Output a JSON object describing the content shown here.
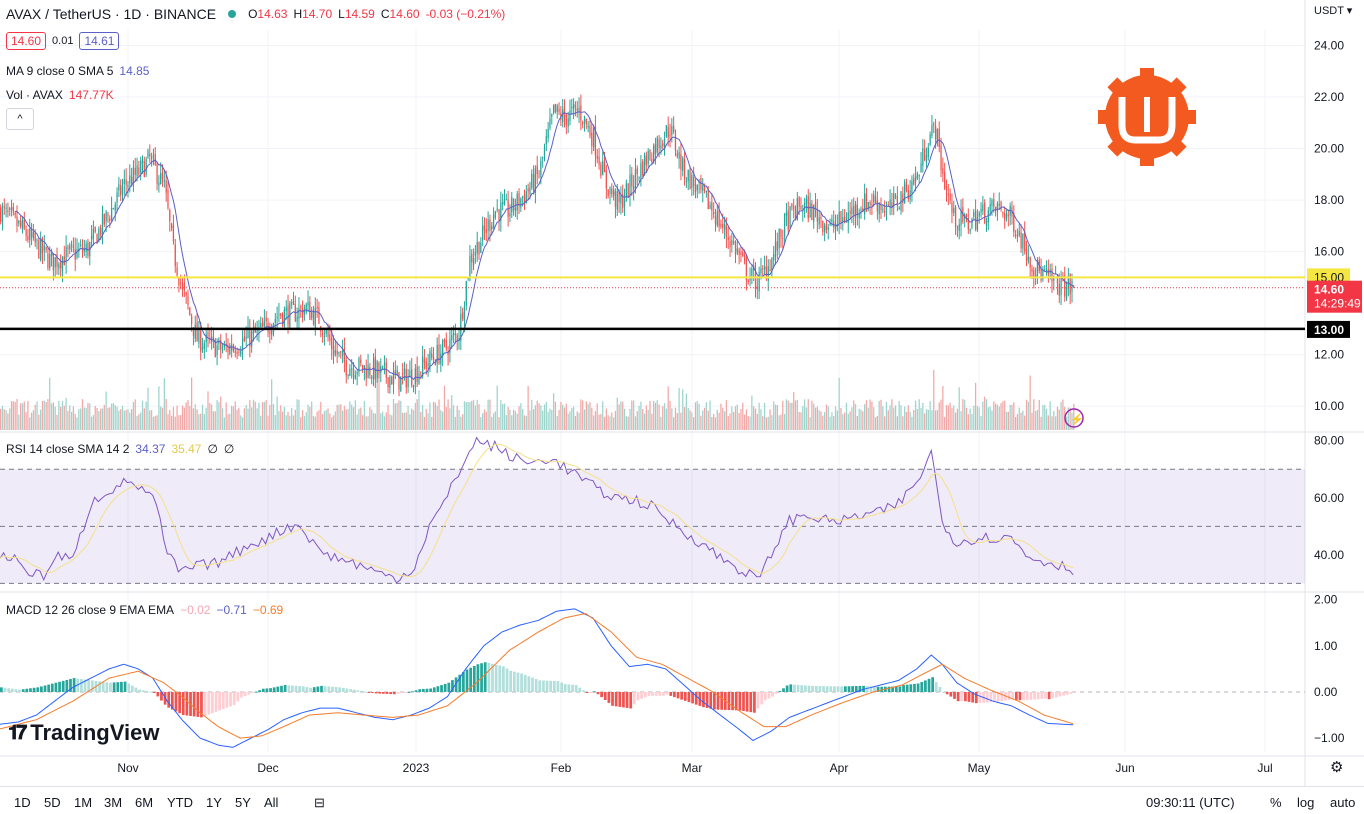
{
  "header": {
    "symbol": "AVAX / TetherUS · 1D · BINANCE",
    "open_label": "O",
    "open": "14.63",
    "high_label": "H",
    "high": "14.70",
    "low_label": "L",
    "low": "14.59",
    "close_label": "C",
    "close": "14.60",
    "change": "-0.03 (−0.21%)",
    "bid": "14.60",
    "spread": "0.01",
    "ask": "14.61",
    "currency": "USDT"
  },
  "indicators": {
    "ma": {
      "label": "MA 9 close 0 SMA 5",
      "value": "14.85"
    },
    "vol": {
      "label": "Vol · AVAX",
      "value": "147.77K"
    },
    "rsi": {
      "label": "RSI 14 close SMA 14 2",
      "value": "34.37",
      "sma": "35.47",
      "v3": "∅",
      "v4": "∅"
    },
    "macd": {
      "label": "MACD 12 26 close 9 EMA EMA",
      "hist": "−0.02",
      "macd": "−0.71",
      "signal": "−0.69"
    }
  },
  "price_axis": {
    "ticks": [
      "24.00",
      "22.00",
      "20.00",
      "18.00",
      "16.00",
      "12.00",
      "10.00"
    ],
    "yellow_level": "15.00",
    "black_level": "13.00",
    "last_price": "14.60",
    "countdown": "14:29:49"
  },
  "rsi_axis": {
    "ticks": [
      "80.00",
      "60.00",
      "40.00"
    ]
  },
  "macd_axis": {
    "ticks": [
      "2.00",
      "1.00",
      "0.00",
      "−1.00"
    ]
  },
  "time_axis": {
    "labels": [
      "Nov",
      "Dec",
      "2023",
      "Feb",
      "Mar",
      "Apr",
      "May",
      "Jun",
      "Jul"
    ]
  },
  "footer": {
    "timeframes": [
      "1D",
      "5D",
      "1M",
      "3M",
      "6M",
      "YTD",
      "1Y",
      "5Y",
      "All"
    ],
    "clock": "09:30:11 (UTC)",
    "percent": "%",
    "log": "log",
    "auto": "auto"
  },
  "branding": {
    "name": "TradingView"
  },
  "colors": {
    "up": "#26a69a",
    "down": "#ef5350",
    "ma": "#5b5fc7",
    "yellow_line": "#f5e642",
    "black_line": "#000000",
    "rsi": "#7e57c2",
    "rsi_sma": "#f5e08a",
    "macd": "#2962ff",
    "signal": "#f57c2c"
  },
  "chart_data": {
    "type": "candlestick",
    "title": "AVAX / TetherUS · 1D · BINANCE",
    "ylim": [
      9.0,
      24.6
    ],
    "horizontal_levels": [
      15.0,
      13.0
    ],
    "anchors": [
      [
        0,
        17.6
      ],
      [
        10,
        17.0
      ],
      [
        20,
        16.2
      ],
      [
        28,
        15.6
      ],
      [
        38,
        15.9
      ],
      [
        48,
        16.1
      ],
      [
        60,
        17.5
      ],
      [
        68,
        18.6
      ],
      [
        75,
        19.0
      ],
      [
        82,
        19.6
      ],
      [
        90,
        18.5
      ],
      [
        95,
        16.0
      ],
      [
        100,
        14.5
      ],
      [
        108,
        12.6
      ],
      [
        115,
        12.4
      ],
      [
        122,
        12.2
      ],
      [
        130,
        12.4
      ],
      [
        138,
        12.7
      ],
      [
        145,
        13.0
      ],
      [
        153,
        13.6
      ],
      [
        160,
        13.6
      ],
      [
        168,
        13.8
      ],
      [
        175,
        13.4
      ],
      [
        183,
        12.2
      ],
      [
        190,
        11.6
      ],
      [
        198,
        11.5
      ],
      [
        205,
        11.4
      ],
      [
        212,
        11.2
      ],
      [
        220,
        11.0
      ],
      [
        228,
        11.3
      ],
      [
        236,
        11.8
      ],
      [
        244,
        12.2
      ],
      [
        252,
        12.9
      ],
      [
        258,
        15.7
      ],
      [
        265,
        16.6
      ],
      [
        272,
        17.6
      ],
      [
        280,
        17.6
      ],
      [
        288,
        18.2
      ],
      [
        296,
        19.0
      ],
      [
        304,
        21.4
      ],
      [
        310,
        21.2
      ],
      [
        318,
        21.5
      ],
      [
        326,
        20.4
      ],
      [
        333,
        18.6
      ],
      [
        340,
        17.8
      ],
      [
        348,
        18.8
      ],
      [
        355,
        19.6
      ],
      [
        362,
        20.3
      ],
      [
        368,
        20.8
      ],
      [
        375,
        19.2
      ],
      [
        383,
        18.4
      ],
      [
        390,
        17.8
      ],
      [
        398,
        16.8
      ],
      [
        405,
        16.0
      ],
      [
        410,
        15.2
      ],
      [
        416,
        14.8
      ],
      [
        424,
        15.7
      ],
      [
        432,
        17.2
      ],
      [
        440,
        17.8
      ],
      [
        448,
        17.5
      ],
      [
        456,
        16.9
      ],
      [
        464,
        17.3
      ],
      [
        472,
        17.8
      ],
      [
        480,
        18.0
      ],
      [
        488,
        17.6
      ],
      [
        496,
        18.2
      ],
      [
        504,
        18.9
      ],
      [
        510,
        20.4
      ],
      [
        514,
        20.8
      ],
      [
        518,
        19.0
      ],
      [
        524,
        17.3
      ],
      [
        532,
        17.1
      ],
      [
        540,
        17.5
      ],
      [
        548,
        17.7
      ],
      [
        556,
        17.3
      ],
      [
        562,
        16.4
      ],
      [
        568,
        15.4
      ],
      [
        575,
        15.0
      ],
      [
        582,
        14.7
      ],
      [
        590,
        14.6
      ]
    ],
    "volume_ylim": [
      0,
      10
    ],
    "rsi": {
      "ylim": [
        27,
        82
      ],
      "bands": [
        70,
        50,
        30
      ],
      "anchors": [
        [
          0,
          40
        ],
        [
          10,
          38
        ],
        [
          18,
          33
        ],
        [
          24,
          33
        ],
        [
          32,
          40
        ],
        [
          40,
          38
        ],
        [
          50,
          58
        ],
        [
          58,
          62
        ],
        [
          64,
          64
        ],
        [
          72,
          66
        ],
        [
          80,
          62
        ],
        [
          86,
          58
        ],
        [
          90,
          44
        ],
        [
          98,
          34
        ],
        [
          108,
          36
        ],
        [
          118,
          37
        ],
        [
          128,
          40
        ],
        [
          138,
          44
        ],
        [
          148,
          46
        ],
        [
          158,
          50
        ],
        [
          166,
          50
        ],
        [
          172,
          44
        ],
        [
          180,
          40
        ],
        [
          190,
          38
        ],
        [
          200,
          36
        ],
        [
          210,
          33
        ],
        [
          220,
          32
        ],
        [
          228,
          36
        ],
        [
          236,
          50
        ],
        [
          244,
          58
        ],
        [
          250,
          66
        ],
        [
          256,
          74
        ],
        [
          262,
          80
        ],
        [
          272,
          78
        ],
        [
          282,
          74
        ],
        [
          292,
          72
        ],
        [
          302,
          74
        ],
        [
          312,
          70
        ],
        [
          322,
          66
        ],
        [
          330,
          62
        ],
        [
          340,
          60
        ],
        [
          350,
          59
        ],
        [
          358,
          57
        ],
        [
          368,
          52
        ],
        [
          376,
          48
        ],
        [
          386,
          44
        ],
        [
          394,
          40
        ],
        [
          404,
          36
        ],
        [
          412,
          33
        ],
        [
          418,
          32
        ],
        [
          426,
          43
        ],
        [
          434,
          52
        ],
        [
          444,
          54
        ],
        [
          454,
          52
        ],
        [
          464,
          52
        ],
        [
          474,
          54
        ],
        [
          484,
          55
        ],
        [
          492,
          57
        ],
        [
          500,
          62
        ],
        [
          508,
          70
        ],
        [
          512,
          76
        ],
        [
          518,
          52
        ],
        [
          526,
          44
        ],
        [
          536,
          46
        ],
        [
          546,
          46
        ],
        [
          556,
          46
        ],
        [
          564,
          40
        ],
        [
          572,
          38
        ],
        [
          580,
          37
        ],
        [
          590,
          35
        ]
      ]
    },
    "macd": {
      "ylim": [
        -1.3,
        2.1
      ],
      "macd_anchors": [
        [
          0,
          -0.7
        ],
        [
          10,
          -0.65
        ],
        [
          20,
          -0.5
        ],
        [
          30,
          -0.2
        ],
        [
          40,
          0.1
        ],
        [
          50,
          0.3
        ],
        [
          60,
          0.5
        ],
        [
          68,
          0.6
        ],
        [
          76,
          0.5
        ],
        [
          84,
          0.3
        ],
        [
          92,
          -0.2
        ],
        [
          100,
          -0.6
        ],
        [
          110,
          -1.0
        ],
        [
          120,
          -1.15
        ],
        [
          128,
          -1.2
        ],
        [
          138,
          -1.0
        ],
        [
          148,
          -0.8
        ],
        [
          156,
          -0.6
        ],
        [
          166,
          -0.45
        ],
        [
          176,
          -0.35
        ],
        [
          186,
          -0.35
        ],
        [
          196,
          -0.45
        ],
        [
          206,
          -0.55
        ],
        [
          216,
          -0.6
        ],
        [
          226,
          -0.5
        ],
        [
          236,
          -0.35
        ],
        [
          246,
          -0.1
        ],
        [
          256,
          0.5
        ],
        [
          266,
          1.0
        ],
        [
          276,
          1.3
        ],
        [
          286,
          1.45
        ],
        [
          296,
          1.55
        ],
        [
          306,
          1.75
        ],
        [
          316,
          1.8
        ],
        [
          326,
          1.6
        ],
        [
          336,
          1.0
        ],
        [
          346,
          0.55
        ],
        [
          356,
          0.6
        ],
        [
          366,
          0.5
        ],
        [
          376,
          0.15
        ],
        [
          386,
          -0.2
        ],
        [
          396,
          -0.5
        ],
        [
          406,
          -0.8
        ],
        [
          414,
          -1.05
        ],
        [
          424,
          -0.85
        ],
        [
          434,
          -0.55
        ],
        [
          444,
          -0.4
        ],
        [
          454,
          -0.25
        ],
        [
          464,
          -0.1
        ],
        [
          474,
          0.05
        ],
        [
          484,
          0.15
        ],
        [
          494,
          0.25
        ],
        [
          504,
          0.5
        ],
        [
          512,
          0.8
        ],
        [
          518,
          0.6
        ],
        [
          526,
          0.2
        ],
        [
          536,
          -0.05
        ],
        [
          546,
          -0.2
        ],
        [
          556,
          -0.3
        ],
        [
          566,
          -0.5
        ],
        [
          576,
          -0.68
        ],
        [
          590,
          -0.71
        ]
      ],
      "signal_anchors": [
        [
          0,
          -0.8
        ],
        [
          20,
          -0.6
        ],
        [
          40,
          -0.2
        ],
        [
          60,
          0.3
        ],
        [
          76,
          0.45
        ],
        [
          90,
          0.2
        ],
        [
          100,
          -0.1
        ],
        [
          110,
          -0.45
        ],
        [
          120,
          -0.75
        ],
        [
          132,
          -1.0
        ],
        [
          144,
          -0.95
        ],
        [
          156,
          -0.75
        ],
        [
          170,
          -0.5
        ],
        [
          186,
          -0.45
        ],
        [
          200,
          -0.5
        ],
        [
          216,
          -0.55
        ],
        [
          230,
          -0.5
        ],
        [
          246,
          -0.3
        ],
        [
          262,
          0.2
        ],
        [
          280,
          0.9
        ],
        [
          296,
          1.3
        ],
        [
          310,
          1.6
        ],
        [
          322,
          1.7
        ],
        [
          336,
          1.3
        ],
        [
          350,
          0.75
        ],
        [
          364,
          0.6
        ],
        [
          378,
          0.3
        ],
        [
          392,
          0.0
        ],
        [
          406,
          -0.4
        ],
        [
          420,
          -0.75
        ],
        [
          432,
          -0.75
        ],
        [
          446,
          -0.5
        ],
        [
          462,
          -0.25
        ],
        [
          480,
          0.0
        ],
        [
          496,
          0.15
        ],
        [
          508,
          0.4
        ],
        [
          518,
          0.6
        ],
        [
          530,
          0.3
        ],
        [
          544,
          0.05
        ],
        [
          560,
          -0.2
        ],
        [
          574,
          -0.5
        ],
        [
          590,
          -0.69
        ]
      ]
    }
  }
}
